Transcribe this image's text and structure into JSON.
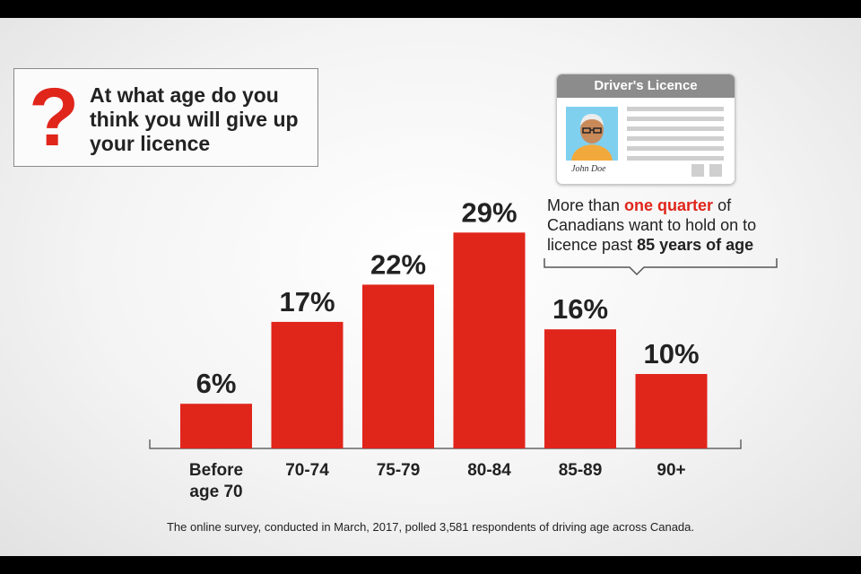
{
  "question": {
    "icon": "question-mark-icon",
    "mark": "?",
    "text": "At what age do you think you will give up your licence"
  },
  "licence_card": {
    "header": "Driver's Licence",
    "name": "John Doe",
    "photo_icon": "person-portrait-icon"
  },
  "callout": {
    "part1": "More than ",
    "highlight": "one quarter",
    "part2": " of Canadians want to hold on to licence past ",
    "bold": "85 years of age"
  },
  "footnote": "The online survey, conducted in March, 2017, polled 3,581 respondents of driving age across Canada.",
  "colors": {
    "bar": "#e0251b",
    "text": "#222222",
    "highlight": "#e0251b"
  },
  "chart_data": {
    "type": "bar",
    "title": "",
    "xlabel": "",
    "ylabel": "",
    "ylim": [
      0,
      30
    ],
    "categories": [
      "Before age 70",
      "70-74",
      "75-79",
      "80-84",
      "85-89",
      "90+"
    ],
    "category_lines": [
      [
        "Before",
        "age 70"
      ],
      [
        "70-74"
      ],
      [
        "75-79"
      ],
      [
        "80-84"
      ],
      [
        "85-89"
      ],
      [
        "90+"
      ]
    ],
    "values": [
      6,
      17,
      22,
      29,
      16,
      10
    ],
    "value_labels": [
      "6%",
      "17%",
      "22%",
      "29%",
      "16%",
      "10%"
    ],
    "grid": false,
    "legend": "none"
  }
}
